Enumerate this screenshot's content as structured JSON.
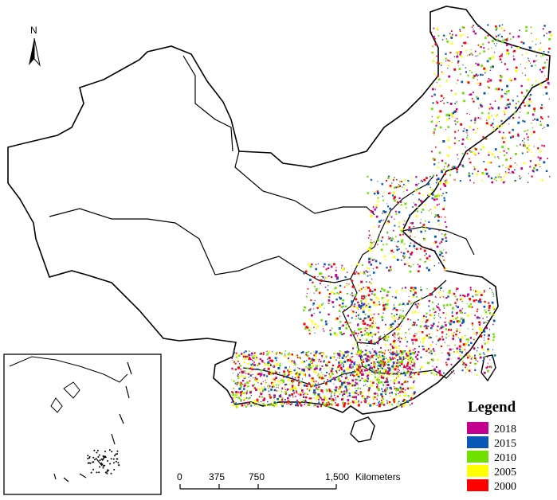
{
  "north_arrow": {
    "label": "N",
    "icon": "north-arrow-icon"
  },
  "legend": {
    "title": "Legend",
    "items": [
      {
        "label": "2018",
        "color": "#c4008f"
      },
      {
        "label": "2015",
        "color": "#0a57b8"
      },
      {
        "label": "2010",
        "color": "#6fe000"
      },
      {
        "label": "2005",
        "color": "#ffff00"
      },
      {
        "label": "2000",
        "color": "#ff0000"
      }
    ]
  },
  "scale_bar": {
    "ticks": [
      "0",
      "375",
      "750",
      "1,500"
    ],
    "unit": "Kilometers"
  }
}
